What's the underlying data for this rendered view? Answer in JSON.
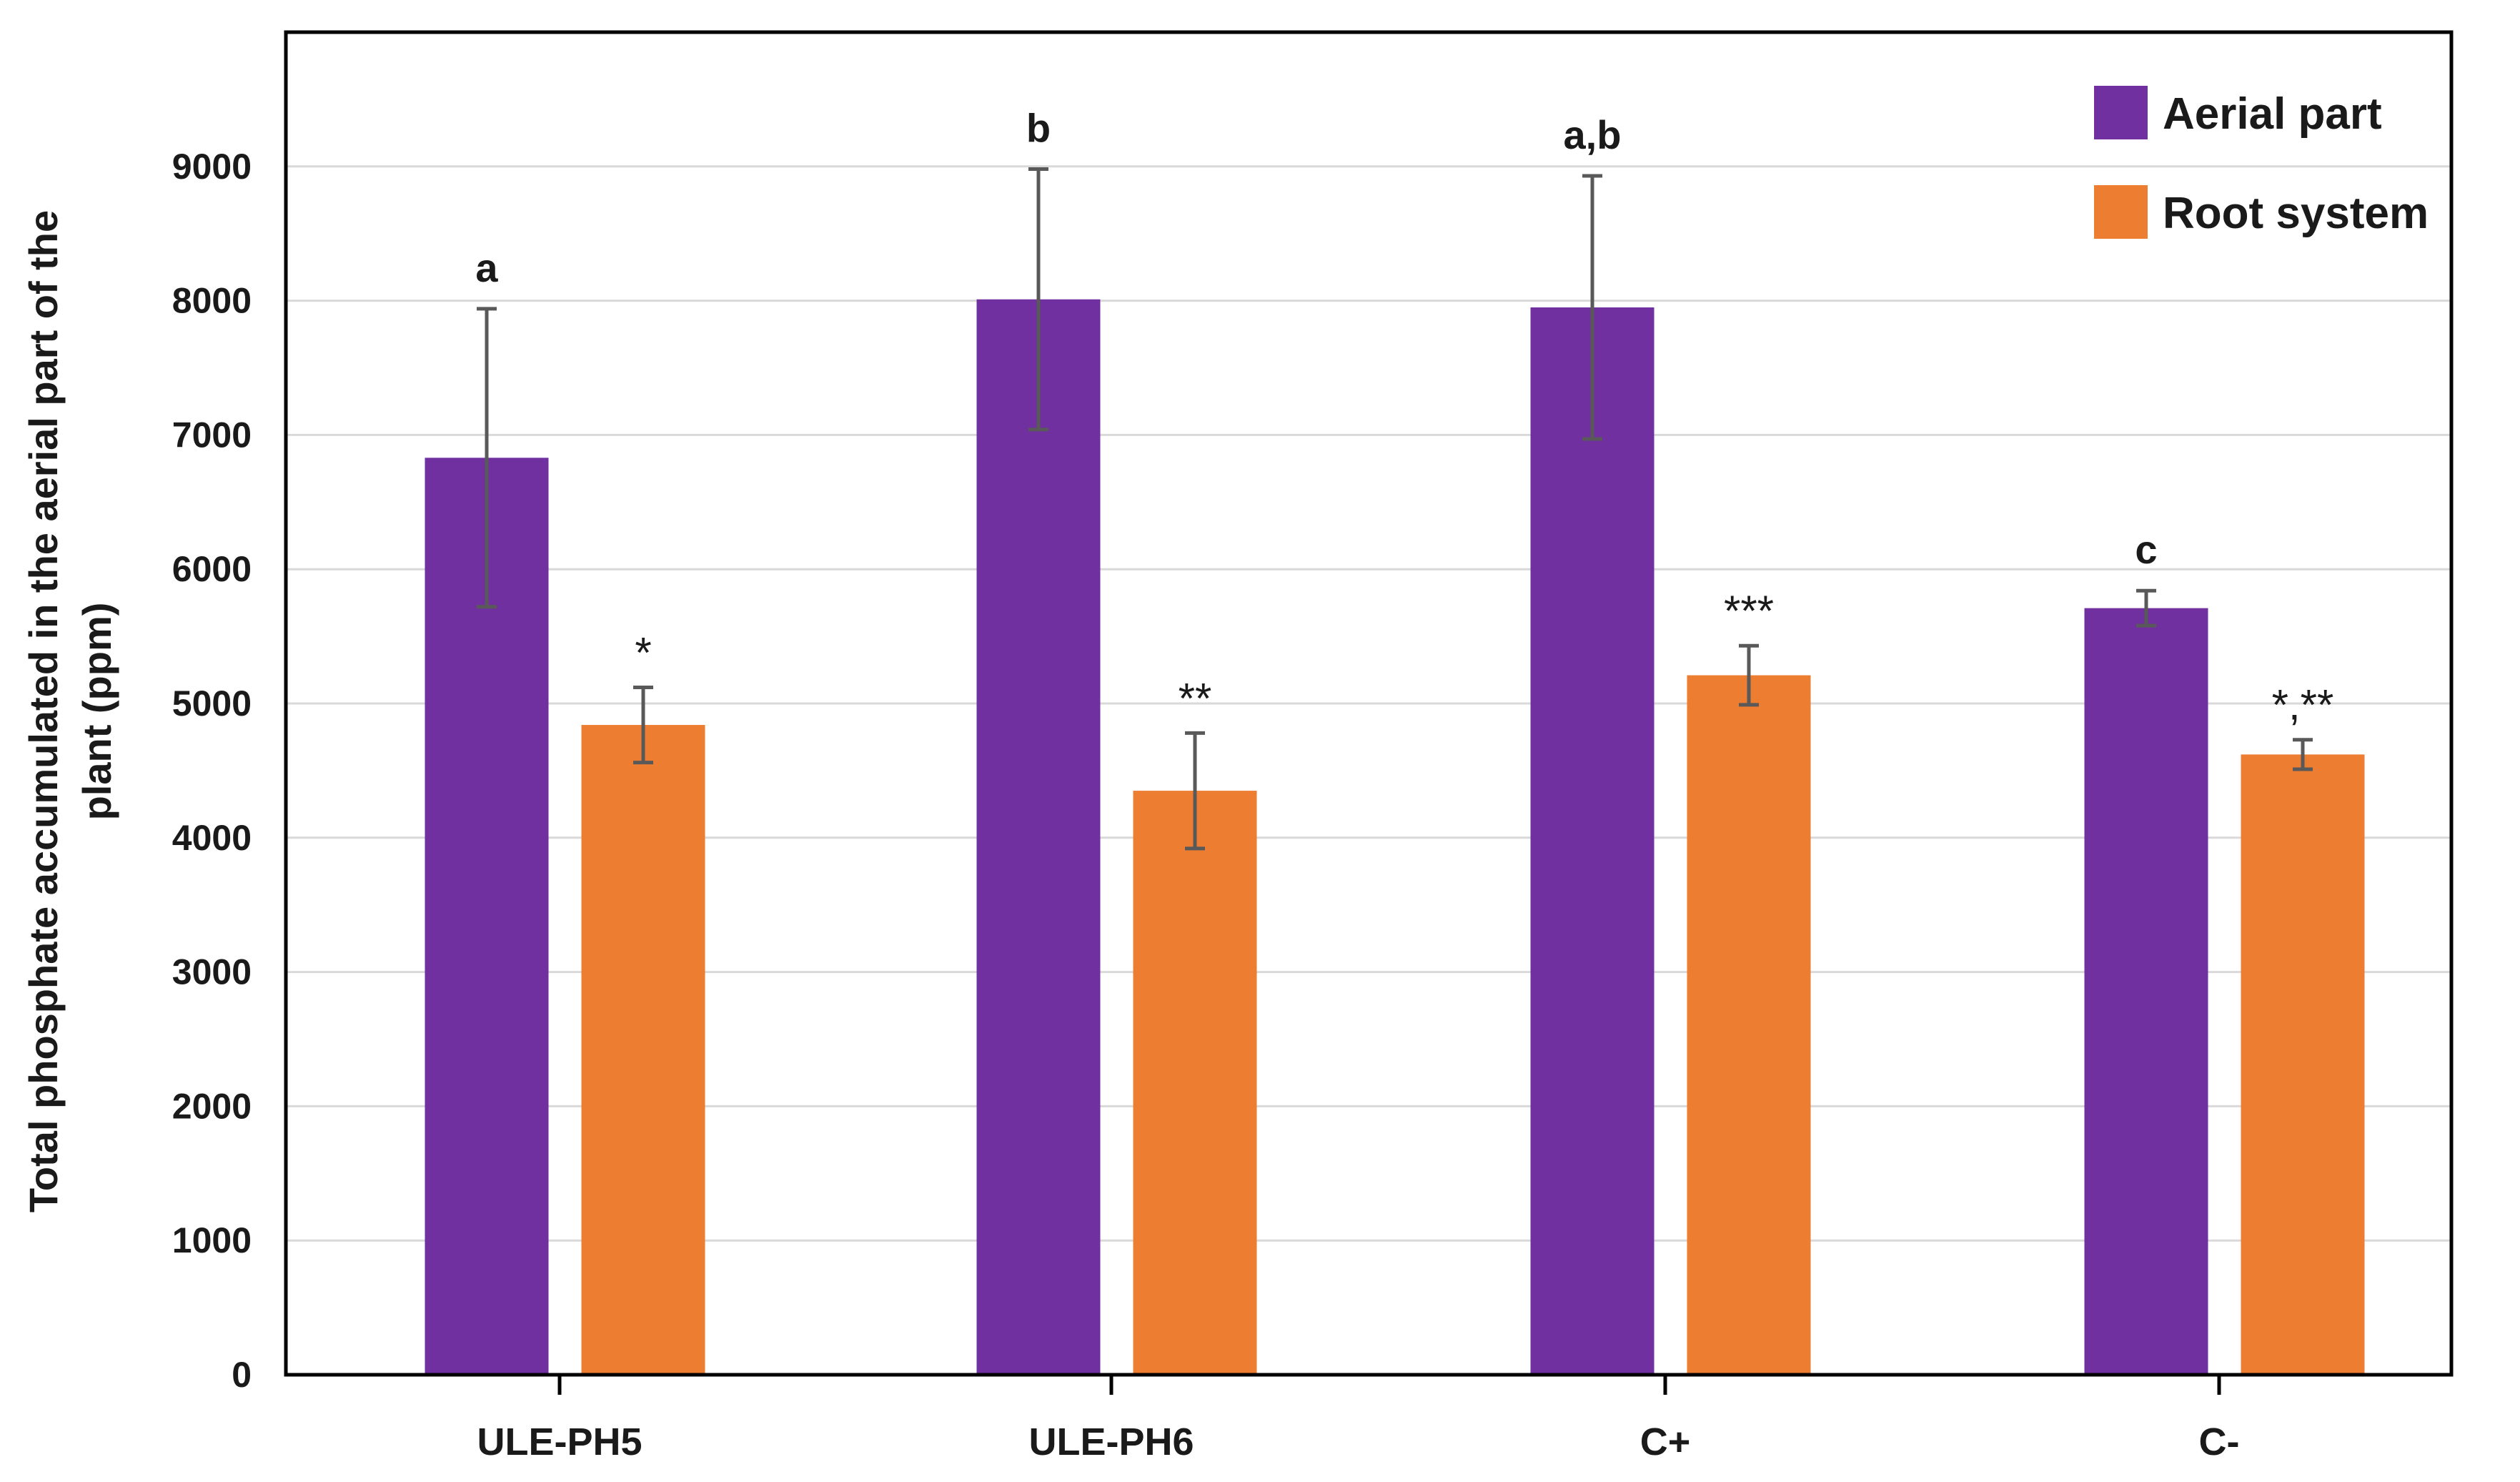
{
  "chart_data": {
    "type": "bar",
    "categories": [
      "ULE-PH5",
      "ULE-PH6",
      "C+",
      "C-"
    ],
    "series": [
      {
        "name": "Aerial part",
        "color": "#7030A0",
        "values": [
          6830,
          8010,
          7950,
          5710
        ],
        "error": [
          1110,
          970,
          980,
          130
        ],
        "labels": [
          "a",
          "b",
          "a,b",
          "c"
        ]
      },
      {
        "name": "Root system",
        "color": "#ED7D31",
        "values": [
          4840,
          4350,
          5210,
          4620
        ],
        "error": [
          280,
          430,
          220,
          110
        ],
        "labels": [
          "*",
          "**",
          "***",
          "*,**"
        ]
      }
    ],
    "title": "",
    "xlabel": "",
    "ylabel": "Total phosphate accumulated in the aerial part of the plant (ppm)",
    "ylabel_lines": [
      "Total phosphate accumulated in the aerial part of the",
      "plant (ppm)"
    ],
    "ylim": [
      0,
      10000
    ],
    "yticks": [
      0,
      1000,
      2000,
      3000,
      4000,
      5000,
      6000,
      7000,
      8000,
      9000
    ],
    "grid": true,
    "legend": "top-right"
  }
}
